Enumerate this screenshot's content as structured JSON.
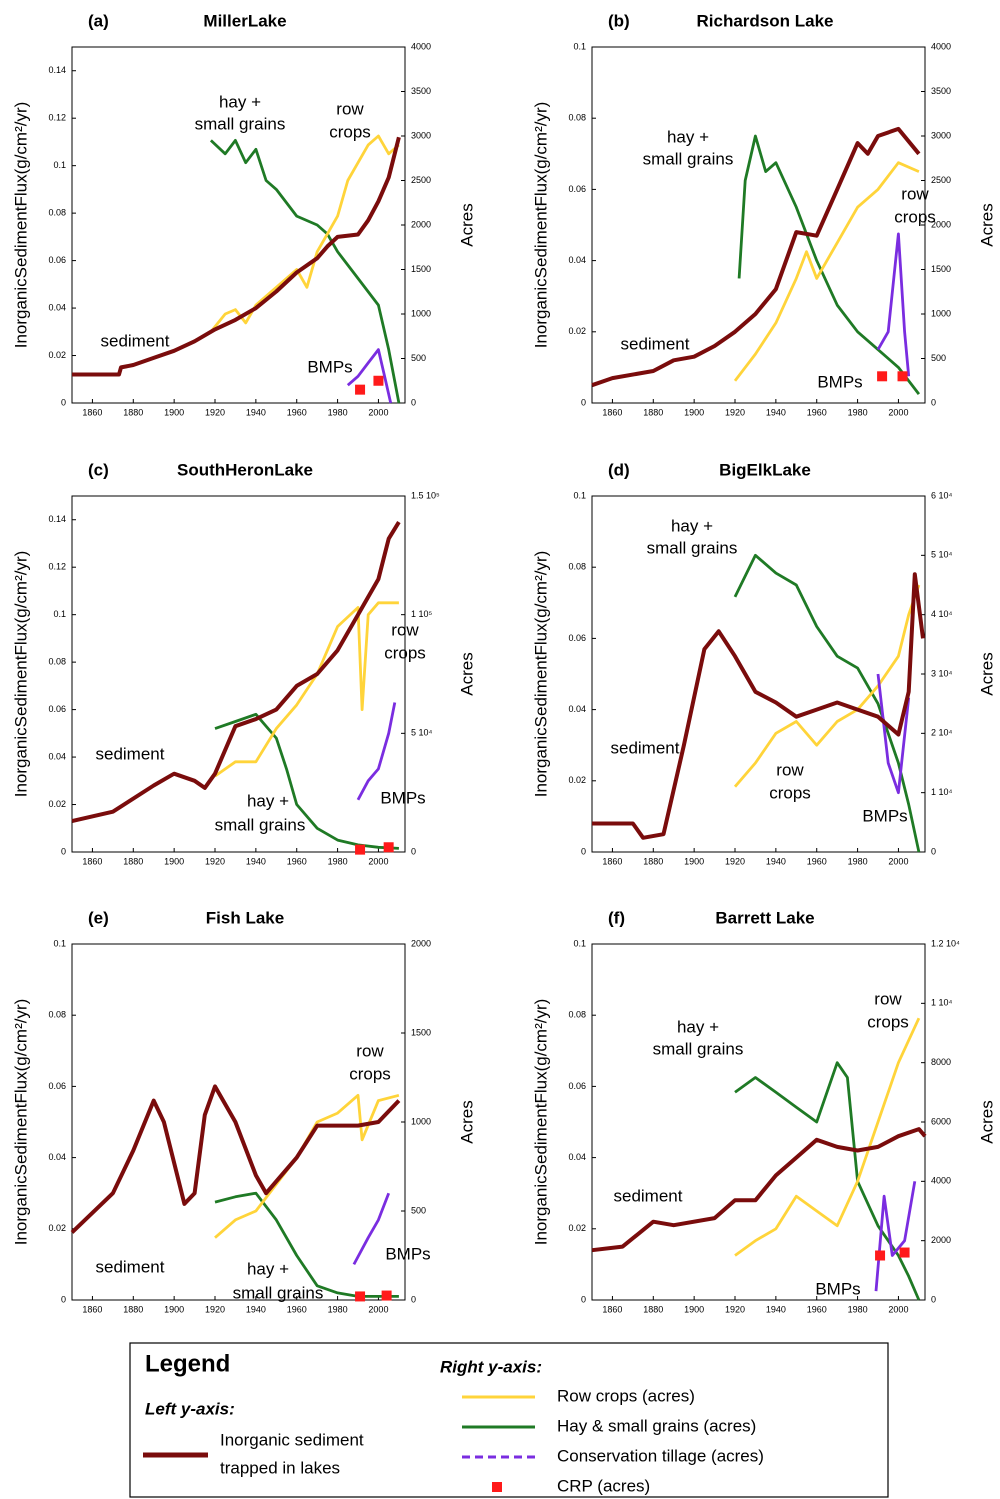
{
  "chart_data": [
    {
      "type": "line",
      "panel": "(a)",
      "title": "MillerLake",
      "ylabel": "InorganicSedimentFlux(g/cm²/yr)",
      "y2label": "Acres",
      "xlim": [
        1850,
        2013
      ],
      "xticks": [
        1860,
        1880,
        1900,
        1920,
        1940,
        1960,
        1980,
        2000
      ],
      "ylim": [
        0,
        0.15
      ],
      "yticks": [
        0,
        0.02,
        0.04,
        0.06,
        0.08,
        0.1,
        0.12,
        0.14
      ],
      "y2lim": [
        0,
        4000
      ],
      "y2ticks": [
        0,
        500,
        1000,
        1500,
        2000,
        2500,
        3000,
        3500,
        4000
      ],
      "annotations": [
        "hay +",
        "small grains",
        "row",
        "crops",
        "sediment",
        "BMPs"
      ],
      "series": [
        {
          "x": [
            1850,
            1873,
            1874,
            1880,
            1890,
            1900,
            1910,
            1920,
            1930,
            1940,
            1950,
            1960,
            1970,
            1975,
            1980,
            1990,
            1995,
            2000,
            2005,
            2010
          ],
          "values": [
            0.012,
            0.012,
            0.015,
            0.016,
            0.019,
            0.022,
            0.026,
            0.031,
            0.035,
            0.04,
            0.047,
            0.055,
            0.061,
            0.066,
            0.07,
            0.071,
            0.077,
            0.085,
            0.095,
            0.112
          ]
        },
        {
          "x": [
            1918,
            1925,
            1930,
            1935,
            1940,
            1950,
            1960,
            1965,
            1970,
            1975,
            1980,
            1985,
            1990,
            1995,
            2000,
            2005,
            2010
          ],
          "values": [
            800,
            1000,
            1050,
            900,
            1100,
            1300,
            1500,
            1300,
            1700,
            1900,
            2100,
            2500,
            2700,
            2900,
            3000,
            2800,
            2900
          ]
        },
        {
          "x": [
            1918,
            1925,
            1930,
            1935,
            1940,
            1945,
            1950,
            1960,
            1970,
            1975,
            1980,
            1990,
            2000,
            2005,
            2010
          ],
          "values": [
            2950,
            2800,
            2950,
            2700,
            2850,
            2500,
            2400,
            2100,
            2000,
            1900,
            1700,
            1400,
            1100,
            600,
            0
          ]
        },
        {
          "x": [
            1985,
            1990,
            1995,
            2000,
            2003,
            2006
          ],
          "values": [
            200,
            300,
            450,
            600,
            300,
            0
          ]
        },
        {
          "x": [
            1991,
            2000
          ],
          "values": [
            150,
            250
          ]
        }
      ]
    },
    {
      "type": "line",
      "panel": "(b)",
      "title": "Richardson Lake",
      "ylabel": "InorganicSedimentFlux(g/cm²/yr)",
      "y2label": "Acres",
      "xlim": [
        1850,
        2013
      ],
      "xticks": [
        1860,
        1880,
        1900,
        1920,
        1940,
        1960,
        1980,
        2000
      ],
      "ylim": [
        0,
        0.1
      ],
      "yticks": [
        0,
        0.02,
        0.04,
        0.06,
        0.08,
        0.1
      ],
      "y2lim": [
        0,
        4000
      ],
      "y2ticks": [
        0,
        500,
        1000,
        1500,
        2000,
        2500,
        3000,
        3500,
        4000
      ],
      "annotations": [
        "hay +",
        "small grains",
        "row",
        "crops",
        "sediment",
        "BMPs"
      ],
      "series": [
        {
          "x": [
            1850,
            1860,
            1880,
            1890,
            1900,
            1910,
            1920,
            1930,
            1940,
            1950,
            1960,
            1970,
            1980,
            1985,
            1990,
            2000,
            2010
          ],
          "values": [
            0.005,
            0.007,
            0.009,
            0.012,
            0.013,
            0.016,
            0.02,
            0.025,
            0.032,
            0.048,
            0.047,
            0.06,
            0.073,
            0.07,
            0.075,
            0.077,
            0.07
          ]
        },
        {
          "x": [
            1920,
            1930,
            1940,
            1950,
            1955,
            1960,
            1970,
            1980,
            1990,
            2000,
            2010
          ],
          "values": [
            250,
            550,
            900,
            1400,
            1700,
            1400,
            1800,
            2200,
            2400,
            2700,
            2600
          ]
        },
        {
          "x": [
            1922,
            1925,
            1930,
            1935,
            1940,
            1950,
            1960,
            1970,
            1980,
            1990,
            2000,
            2010
          ],
          "values": [
            1400,
            2500,
            3000,
            2600,
            2700,
            2200,
            1600,
            1100,
            800,
            600,
            400,
            100
          ]
        },
        {
          "x": [
            1990,
            1995,
            2000,
            2003,
            2005
          ],
          "values": [
            600,
            800,
            1900,
            800,
            300
          ]
        },
        {
          "x": [
            1992,
            2002
          ],
          "values": [
            300,
            300
          ]
        }
      ]
    },
    {
      "type": "line",
      "panel": "(c)",
      "title": "SouthHeronLake",
      "ylabel": "InorganicSedimentFlux(g/cm²/yr)",
      "y2label": "Acres",
      "xlim": [
        1850,
        2013
      ],
      "xticks": [
        1860,
        1880,
        1900,
        1920,
        1940,
        1960,
        1980,
        2000
      ],
      "ylim": [
        0,
        0.15
      ],
      "yticks": [
        0,
        0.02,
        0.04,
        0.06,
        0.08,
        0.1,
        0.12,
        0.14
      ],
      "y2lim": [
        0,
        150000
      ],
      "y2ticks": [
        0,
        {
          "value": 50000,
          "label": "5 10⁴"
        },
        {
          "value": 100000,
          "label": "1 10⁵"
        },
        {
          "value": 150000,
          "label": "1.5 10⁵"
        }
      ],
      "annotations": [
        "row",
        "crops",
        "sediment",
        "hay +",
        "small grains",
        "BMPs"
      ],
      "series": [
        {
          "x": [
            1850,
            1870,
            1890,
            1900,
            1910,
            1915,
            1920,
            1930,
            1940,
            1950,
            1960,
            1970,
            1980,
            1990,
            2000,
            2005,
            2010
          ],
          "values": [
            0.013,
            0.017,
            0.028,
            0.033,
            0.03,
            0.027,
            0.033,
            0.053,
            0.056,
            0.06,
            0.07,
            0.075,
            0.085,
            0.1,
            0.115,
            0.132,
            0.139
          ]
        },
        {
          "x": [
            1920,
            1930,
            1940,
            1950,
            1960,
            1970,
            1980,
            1990,
            1992,
            1995,
            2000,
            2010
          ],
          "values": [
            32000,
            38000,
            38000,
            52000,
            62000,
            75000,
            95000,
            103000,
            60000,
            100000,
            105000,
            105000
          ]
        },
        {
          "x": [
            1920,
            1930,
            1940,
            1950,
            1955,
            1960,
            1970,
            1980,
            1990,
            2000,
            2010
          ],
          "values": [
            52000,
            55000,
            58000,
            48000,
            35000,
            20000,
            10000,
            5000,
            3000,
            2000,
            1500
          ]
        },
        {
          "x": [
            1990,
            1995,
            2000,
            2005,
            2008
          ],
          "values": [
            22000,
            30000,
            35000,
            50000,
            63000
          ]
        },
        {
          "x": [
            1991,
            2005
          ],
          "values": [
            1000,
            2000
          ]
        }
      ]
    },
    {
      "type": "line",
      "panel": "(d)",
      "title": "BigElkLake",
      "ylabel": "InorganicSedimentFlux(g/cm²/yr)",
      "y2label": "Acres",
      "xlim": [
        1850,
        2013
      ],
      "xticks": [
        1860,
        1880,
        1900,
        1920,
        1940,
        1960,
        1980,
        2000
      ],
      "ylim": [
        0,
        0.1
      ],
      "yticks": [
        0,
        0.02,
        0.04,
        0.06,
        0.08,
        0.1
      ],
      "y2lim": [
        0,
        60000
      ],
      "y2ticks": [
        0,
        {
          "value": 10000,
          "label": "1 10⁴"
        },
        {
          "value": 20000,
          "label": "2 10⁴"
        },
        {
          "value": 30000,
          "label": "3 10⁴"
        },
        {
          "value": 40000,
          "label": "4 10⁴"
        },
        {
          "value": 50000,
          "label": "5 10⁴"
        },
        {
          "value": 60000,
          "label": "6 10⁴"
        }
      ],
      "annotations": [
        "hay +",
        "small grains",
        "sediment",
        "row",
        "crops",
        "BMPs"
      ],
      "series": [
        {
          "x": [
            1850,
            1870,
            1875,
            1885,
            1895,
            1905,
            1912,
            1920,
            1930,
            1940,
            1950,
            1960,
            1970,
            1980,
            1990,
            2000,
            2005,
            2008,
            2012
          ],
          "values": [
            0.008,
            0.008,
            0.004,
            0.005,
            0.03,
            0.057,
            0.062,
            0.055,
            0.045,
            0.042,
            0.038,
            0.04,
            0.042,
            0.04,
            0.038,
            0.033,
            0.045,
            0.078,
            0.06
          ]
        },
        {
          "x": [
            1920,
            1930,
            1940,
            1950,
            1960,
            1970,
            1980,
            1990,
            2000,
            2005,
            2010
          ],
          "values": [
            11000,
            15000,
            20000,
            22000,
            18000,
            22000,
            24000,
            28000,
            33000,
            40000,
            45000
          ]
        },
        {
          "x": [
            1920,
            1930,
            1940,
            1950,
            1960,
            1970,
            1980,
            1990,
            2000,
            2005,
            2010
          ],
          "values": [
            43000,
            50000,
            47000,
            45000,
            38000,
            33000,
            31000,
            25000,
            15000,
            8000,
            0
          ]
        },
        {
          "x": [
            1990,
            1995,
            2000,
            2005
          ],
          "values": [
            30000,
            15000,
            10000,
            26000
          ]
        }
      ]
    },
    {
      "type": "line",
      "panel": "(e)",
      "title": "Fish Lake",
      "ylabel": "InorganicSedimentFlux(g/cm²/yr)",
      "y2label": "Acres",
      "xlim": [
        1850,
        2013
      ],
      "xticks": [
        1860,
        1880,
        1900,
        1920,
        1940,
        1960,
        1980,
        2000
      ],
      "ylim": [
        0,
        0.1
      ],
      "yticks": [
        0,
        0.02,
        0.04,
        0.06,
        0.08,
        0.1
      ],
      "y2lim": [
        0,
        2000
      ],
      "y2ticks": [
        0,
        500,
        1000,
        1500,
        2000
      ],
      "annotations": [
        "row",
        "crops",
        "sediment",
        "hay +",
        "small grains",
        "BMPs"
      ],
      "series": [
        {
          "x": [
            1850,
            1870,
            1880,
            1890,
            1895,
            1905,
            1910,
            1915,
            1920,
            1930,
            1940,
            1945,
            1960,
            1970,
            1990,
            2000,
            2010
          ],
          "values": [
            0.019,
            0.03,
            0.042,
            0.056,
            0.05,
            0.027,
            0.03,
            0.052,
            0.06,
            0.05,
            0.035,
            0.03,
            0.04,
            0.049,
            0.049,
            0.05,
            0.056
          ]
        },
        {
          "x": [
            1920,
            1930,
            1940,
            1950,
            1960,
            1970,
            1980,
            1990,
            1992,
            2000,
            2010
          ],
          "values": [
            350,
            450,
            500,
            650,
            800,
            1000,
            1050,
            1150,
            900,
            1120,
            1150
          ]
        },
        {
          "x": [
            1920,
            1930,
            1940,
            1950,
            1960,
            1970,
            1980,
            1990,
            2000,
            2010
          ],
          "values": [
            550,
            580,
            600,
            450,
            250,
            80,
            40,
            20,
            20,
            20
          ]
        },
        {
          "x": [
            1988,
            1995,
            2000,
            2005
          ],
          "values": [
            200,
            350,
            450,
            600
          ]
        },
        {
          "x": [
            1991,
            2004
          ],
          "values": [
            20,
            25
          ]
        }
      ]
    },
    {
      "type": "line",
      "panel": "(f)",
      "title": "Barrett Lake",
      "ylabel": "InorganicSedimentFlux(g/cm²/yr)",
      "y2label": "Acres",
      "xlim": [
        1850,
        2013
      ],
      "xticks": [
        1860,
        1880,
        1900,
        1920,
        1940,
        1960,
        1980,
        2000
      ],
      "ylim": [
        0,
        0.1
      ],
      "yticks": [
        0,
        0.02,
        0.04,
        0.06,
        0.08,
        0.1
      ],
      "y2lim": [
        0,
        12000
      ],
      "y2ticks": [
        0,
        2000,
        4000,
        6000,
        8000,
        {
          "value": 10000,
          "label": "1 10⁴"
        },
        {
          "value": 12000,
          "label": "1.2 10⁴"
        }
      ],
      "annotations": [
        "row",
        "crops",
        "hay +",
        "small grains",
        "sediment",
        "BMPs"
      ],
      "series": [
        {
          "x": [
            1850,
            1865,
            1880,
            1890,
            1910,
            1920,
            1930,
            1940,
            1950,
            1960,
            1970,
            1980,
            1990,
            2000,
            2010,
            2013
          ],
          "values": [
            0.014,
            0.015,
            0.022,
            0.021,
            0.023,
            0.028,
            0.028,
            0.035,
            0.04,
            0.045,
            0.043,
            0.042,
            0.043,
            0.046,
            0.048,
            0.046
          ]
        },
        {
          "x": [
            1920,
            1930,
            1940,
            1950,
            1960,
            1970,
            1980,
            1990,
            2000,
            2010
          ],
          "values": [
            1500,
            2000,
            2400,
            3500,
            3000,
            2500,
            4000,
            6000,
            8000,
            9500
          ]
        },
        {
          "x": [
            1920,
            1930,
            1940,
            1950,
            1960,
            1970,
            1975,
            1980,
            1990,
            2000,
            2005,
            2010
          ],
          "values": [
            7000,
            7500,
            7000,
            6500,
            6000,
            8000,
            7500,
            4000,
            2500,
            1500,
            800,
            0
          ]
        },
        {
          "x": [
            1989,
            1993,
            1997,
            2003,
            2008
          ],
          "values": [
            300,
            3500,
            1500,
            2000,
            4000
          ]
        },
        {
          "x": [
            1991,
            2003
          ],
          "values": [
            1500,
            1600
          ]
        }
      ]
    }
  ],
  "legend": {
    "title": "Legend",
    "left_heading": "Left y-axis:",
    "right_heading": "Right y-axis:",
    "entries": [
      {
        "lines": [
          "Inorganic sediment",
          "trapped in lakes"
        ],
        "color": "#7a0c0c",
        "marker": "line",
        "dashed": false
      },
      {
        "lines": [
          "Row crops (acres)"
        ],
        "color": "#ffd43a",
        "marker": "line",
        "dashed": false
      },
      {
        "lines": [
          "Hay & small grains (acres)"
        ],
        "color": "#1f7a25",
        "marker": "line",
        "dashed": false
      },
      {
        "lines": [
          "Conservation tillage (acres)"
        ],
        "color": "#7a2de0",
        "marker": "line",
        "dashed": true
      },
      {
        "lines": [
          "CRP (acres)"
        ],
        "color": "#ff1a1a",
        "marker": "square",
        "dashed": false
      }
    ]
  }
}
